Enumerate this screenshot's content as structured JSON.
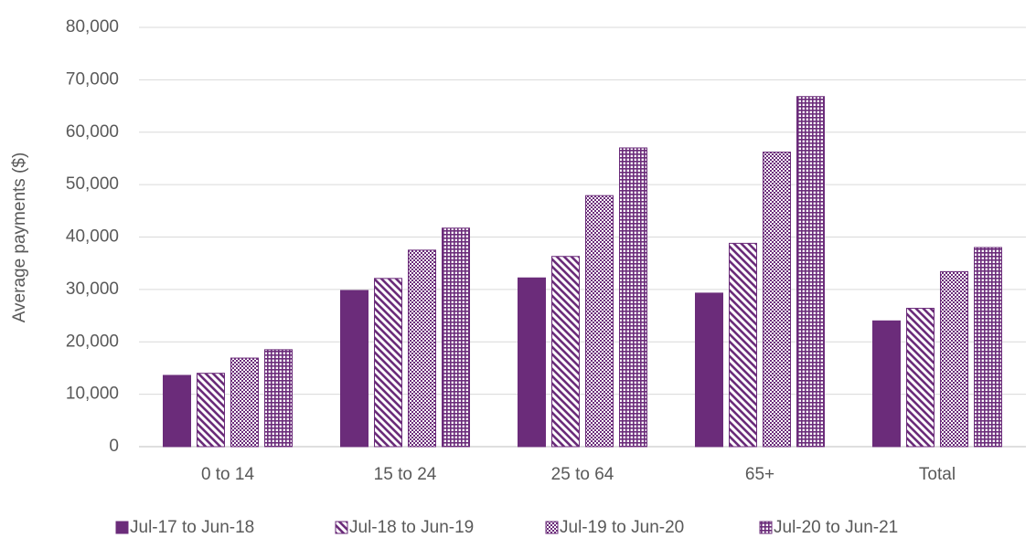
{
  "chart_data": {
    "type": "bar",
    "y_label": "Average payments ($)",
    "categories": [
      "0 to 14",
      "15 to 24",
      "25 to 64",
      "65+",
      "Total"
    ],
    "series": [
      {
        "name": "Jul-17 to Jun-18",
        "color": "#6b2c7a",
        "pattern": "solid",
        "values": [
          13600,
          29800,
          32200,
          29300,
          24000
        ]
      },
      {
        "name": "Jul-18 to Jun-19",
        "color": "#6b2c7a",
        "pattern": "diagonal",
        "values": [
          14000,
          32100,
          36300,
          38800,
          26400
        ]
      },
      {
        "name": "Jul-19 to Jun-20",
        "color": "#6b2c7a",
        "pattern": "checker",
        "values": [
          16900,
          37500,
          47900,
          56200,
          33400
        ]
      },
      {
        "name": "Jul-20 to Jun-21",
        "color": "#6b2c7a",
        "pattern": "grid",
        "values": [
          18500,
          41700,
          57000,
          66800,
          38000
        ]
      }
    ],
    "ylim": [
      0,
      80000
    ],
    "yticks": [
      0,
      {
        "value": 10000,
        "label": "10,000"
      },
      {
        "value": 20000,
        "label": "20,000"
      },
      {
        "value": 30000,
        "label": "30,000"
      },
      {
        "value": 40000,
        "label": "40,000"
      },
      {
        "value": 50000,
        "label": "50,000"
      },
      {
        "value": 60000,
        "label": "60,000"
      },
      {
        "value": 70000,
        "label": "70,000"
      },
      {
        "value": 80000,
        "label": "80,000"
      }
    ],
    "grid": true,
    "legend": "bottom"
  }
}
